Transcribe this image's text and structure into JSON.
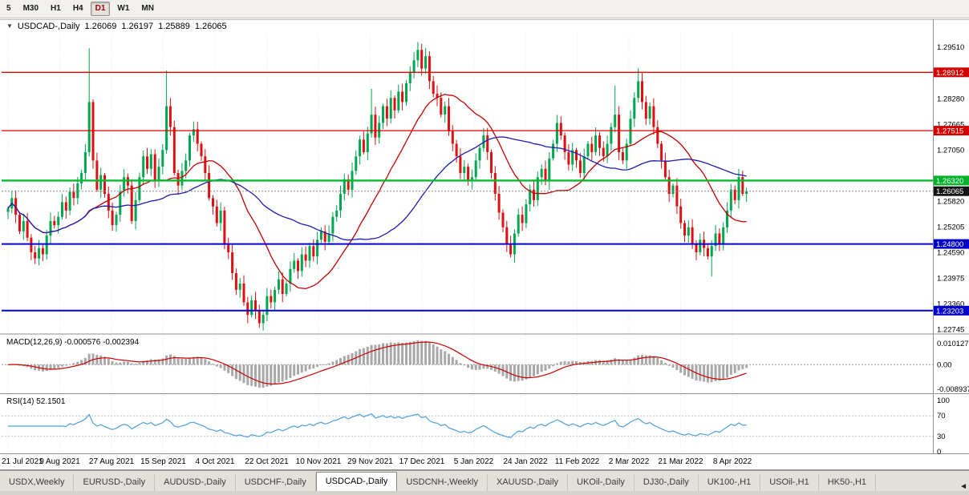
{
  "toolbar": {
    "timeframes": [
      {
        "label": "5",
        "selected": false
      },
      {
        "label": "M30",
        "selected": false
      },
      {
        "label": "H1",
        "selected": false
      },
      {
        "label": "H4",
        "selected": false
      },
      {
        "label": "D1",
        "selected": true
      },
      {
        "label": "W1",
        "selected": false
      },
      {
        "label": "MN",
        "selected": false
      }
    ]
  },
  "chart_window": {
    "symbol": "USDCAD-,Daily",
    "ohlc": {
      "open": "1.26069",
      "high": "1.26197",
      "low": "1.25889",
      "close": "1.26065"
    }
  },
  "price_axis": {
    "labels": [
      1.2951,
      1.2828,
      1.27665,
      1.2705,
      1.2582,
      1.25205,
      1.2459,
      1.23975,
      1.2336,
      1.22745
    ],
    "badges": [
      {
        "value": 1.28912,
        "color": "#d40000",
        "text_color": "#ffffff"
      },
      {
        "value": 1.27515,
        "color": "#d40000",
        "text_color": "#ffffff"
      },
      {
        "value": 1.2632,
        "color": "#00b22a",
        "text_color": "#ffffff"
      },
      {
        "value": 1.26065,
        "color": "#141414",
        "text_color": "#ffffff"
      },
      {
        "value": 1.248,
        "color": "#0000cd",
        "text_color": "#ffffff"
      },
      {
        "value": 1.23203,
        "color": "#0000cd",
        "text_color": "#ffffff"
      }
    ]
  },
  "chart_data": {
    "type": "candlestick",
    "symbol": "USDCAD",
    "period": "Daily",
    "y_range": [
      1.2268,
      1.2984
    ],
    "x_labels": [
      "21 Jul 2021",
      "9 Aug 2021",
      "27 Aug 2021",
      "15 Sep 2021",
      "4 Oct 2021",
      "22 Oct 2021",
      "10 Nov 2021",
      "29 Nov 2021",
      "17 Dec 2021",
      "5 Jan 2022",
      "24 Jan 2022",
      "11 Feb 2022",
      "2 Mar 2022",
      "21 Mar 2022",
      "8 Apr 2022"
    ],
    "up_color": "#00a650",
    "down_color": "#dd1111",
    "closes": [
      1.2565,
      1.259,
      1.255,
      1.251,
      1.2535,
      1.2495,
      1.246,
      1.2445,
      1.247,
      1.2455,
      1.25,
      1.2535,
      1.2525,
      1.2545,
      1.258,
      1.256,
      1.2605,
      1.259,
      1.2625,
      1.265,
      1.27,
      1.282,
      1.268,
      1.261,
      1.2645,
      1.26,
      1.256,
      1.2525,
      1.255,
      1.2605,
      1.264,
      1.262,
      1.2535,
      1.2585,
      1.264,
      1.269,
      1.266,
      1.2695,
      1.263,
      1.2665,
      1.2705,
      1.281,
      1.276,
      1.265,
      1.262,
      1.2655,
      1.268,
      1.274,
      1.2755,
      1.272,
      1.269,
      1.265,
      1.259,
      1.257,
      1.253,
      1.256,
      1.248,
      1.246,
      1.241,
      1.237,
      1.2385,
      1.234,
      1.231,
      1.2345,
      1.232,
      1.229,
      1.231,
      1.2355,
      1.234,
      1.237,
      1.2395,
      1.236,
      1.2385,
      1.242,
      1.244,
      1.2415,
      1.2455,
      1.244,
      1.2475,
      1.245,
      1.249,
      1.251,
      1.2485,
      1.2505,
      1.2545,
      1.256,
      1.26,
      1.2635,
      1.261,
      1.2655,
      1.269,
      1.273,
      1.27,
      1.2745,
      1.279,
      1.2735,
      1.277,
      1.281,
      1.278,
      1.283,
      1.28,
      1.2845,
      1.282,
      1.2865,
      1.289,
      1.292,
      1.2945,
      1.29,
      1.293,
      1.287,
      1.284,
      1.283,
      1.279,
      1.281,
      1.275,
      1.272,
      1.269,
      1.265,
      1.2665,
      1.263,
      1.264,
      1.268,
      1.271,
      1.274,
      1.27,
      1.265,
      1.26,
      1.2555,
      1.252,
      1.248,
      1.2455,
      1.2505,
      1.255,
      1.253,
      1.2575,
      1.261,
      1.2585,
      1.264,
      1.266,
      1.263,
      1.2685,
      1.272,
      1.277,
      1.274,
      1.27,
      1.267,
      1.2705,
      1.268,
      1.265,
      1.269,
      1.272,
      1.27,
      1.274,
      1.271,
      1.269,
      1.272,
      1.276,
      1.279,
      1.27,
      1.268,
      1.272,
      1.278,
      1.283,
      1.287,
      1.282,
      1.278,
      1.281,
      1.276,
      1.272,
      1.268,
      1.264,
      1.26,
      1.262,
      1.257,
      1.253,
      1.25,
      1.252,
      1.248,
      1.246,
      1.249,
      1.247,
      1.245,
      1.2475,
      1.2505,
      1.248,
      1.252,
      1.256,
      1.261,
      1.2585,
      1.264,
      1.26,
      1.26065
    ],
    "wick_overrides": {
      "21": {
        "h": 1.2949
      },
      "41": {
        "h": 1.2896
      },
      "64": {
        "l": 1.2302
      },
      "65": {
        "l": 1.2288
      },
      "94": {
        "h": 1.2852
      },
      "106": {
        "h": 1.2964
      },
      "108": {
        "h": 1.295
      },
      "130": {
        "l": 1.2448
      },
      "157": {
        "h": 1.286
      },
      "163": {
        "h": 1.2901
      },
      "182": {
        "l": 1.2402
      },
      "189": {
        "h": 1.2655
      }
    },
    "ma": [
      {
        "period": 20,
        "color": "#c40000"
      },
      {
        "period": 45,
        "color": "#1c1cae"
      }
    ],
    "hlines": [
      {
        "price": 1.28912,
        "color": "#e00000",
        "width": 1.3
      },
      {
        "price": 1.27515,
        "color": "#e00000",
        "width": 1.3
      },
      {
        "price": 1.2632,
        "color": "#00bb2d",
        "width": 2.4
      },
      {
        "price": 1.248,
        "color": "#0000d8",
        "width": 2
      },
      {
        "price": 1.23203,
        "color": "#0000d8",
        "width": 2
      }
    ],
    "current_price": 1.26065,
    "indicators": {
      "macd": {
        "label": "MACD(12,26,9)",
        "values": "-0.000576 -0.002394",
        "axis_labels": [
          "0.010127",
          "0.00",
          "-0.008937"
        ],
        "histogram_color": "#a8a8a8",
        "signal_color": "#cc0000"
      },
      "rsi": {
        "label": "RSI(14)",
        "value": "52.1501",
        "axis_labels": [
          "100",
          "70",
          "30",
          "0"
        ],
        "levels": [
          70,
          30
        ],
        "line_color": "#4da0dd"
      }
    }
  },
  "tabs": {
    "items": [
      {
        "label": "USDX,Weekly",
        "active": false
      },
      {
        "label": "EURUSD-,Daily",
        "active": false
      },
      {
        "label": "AUDUSD-,Daily",
        "active": false
      },
      {
        "label": "USDCHF-,Daily",
        "active": false
      },
      {
        "label": "USDCAD-,Daily",
        "active": true
      },
      {
        "label": "USDCNH-,Weekly",
        "active": false
      },
      {
        "label": "XAUUSD-,Daily",
        "active": false
      },
      {
        "label": "UKOil-,Daily",
        "active": false
      },
      {
        "label": "DJ30-,Daily",
        "active": false
      },
      {
        "label": "UK100-,H1",
        "active": false
      },
      {
        "label": "USOil-,H1",
        "active": false
      },
      {
        "label": "HK50-,H1",
        "active": false
      }
    ],
    "scroll_left_icon": "◄"
  }
}
